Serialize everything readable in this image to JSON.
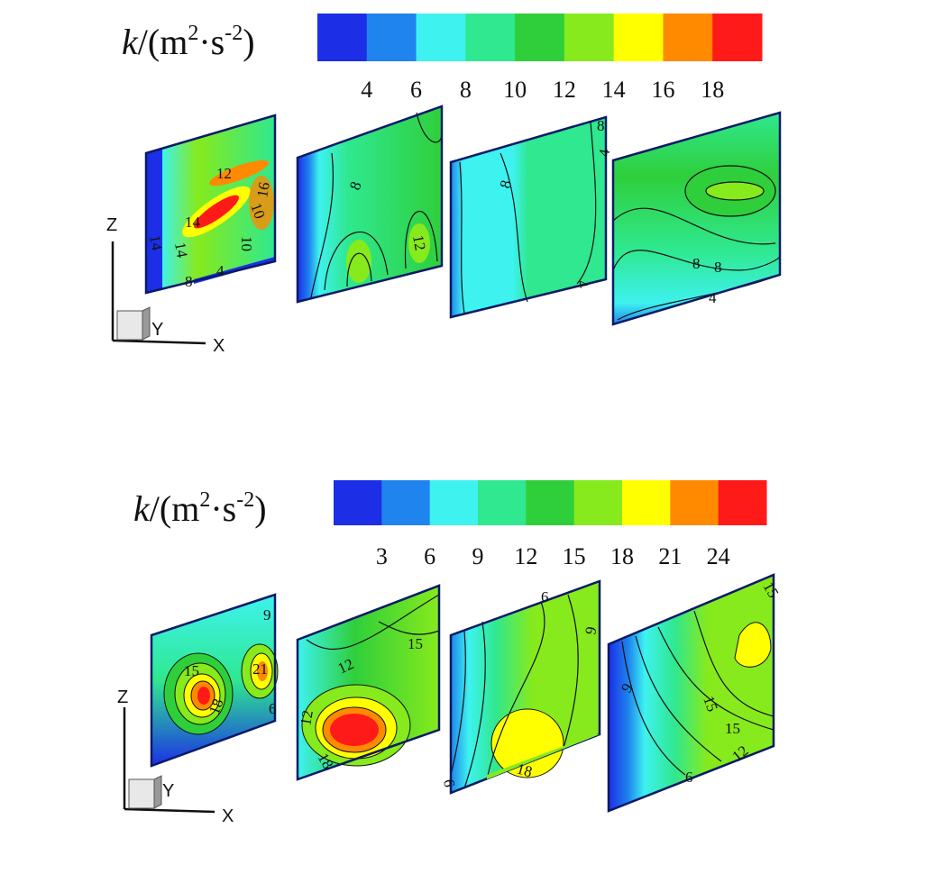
{
  "chart_data": [
    {
      "type": "heatmap",
      "title": "k/(m2·s-2)",
      "title_parts": {
        "var": "k",
        "unit_open": "/(m",
        "sup1": "2",
        "dot_s": "·s",
        "sup2": "-2",
        "close": ")"
      },
      "colorbar": {
        "tick_labels": [
          "4",
          "6",
          "8",
          "10",
          "12",
          "14",
          "16",
          "18"
        ],
        "colors": [
          "#1c2fe6",
          "#1f84ee",
          "#3ef2ef",
          "#2fe88f",
          "#2fcf3b",
          "#86ea1c",
          "#ffff00",
          "#ff8a00",
          "#ff1a1a"
        ]
      },
      "contour_labels": {
        "panel1": [
          "12",
          "14",
          "14",
          "14",
          "10",
          "16",
          "10",
          "8",
          "4"
        ],
        "panel2": [
          "8",
          "12"
        ],
        "panel3": [
          "8",
          "4",
          "4",
          "8"
        ],
        "panel4": [
          "8",
          "8",
          "4"
        ]
      },
      "axes": {
        "z": "Z",
        "y": "Y",
        "x": "X"
      }
    },
    {
      "type": "heatmap",
      "title": "k/(m2·s-2)",
      "title_parts": {
        "var": "k",
        "unit_open": "/(m",
        "sup1": "2",
        "dot_s": "·s",
        "sup2": "-2",
        "close": ")"
      },
      "colorbar": {
        "tick_labels": [
          "3",
          "6",
          "9",
          "12",
          "15",
          "18",
          "21",
          "24"
        ],
        "colors": [
          "#1c2fe6",
          "#1f84ee",
          "#3ef2ef",
          "#2fe88f",
          "#2fcf3b",
          "#86ea1c",
          "#ffff00",
          "#ff8a00",
          "#ff1a1a"
        ]
      },
      "contour_labels": {
        "panel1": [
          "15",
          "18",
          "21",
          "9",
          "6"
        ],
        "panel2": [
          "12",
          "15",
          "12",
          "18"
        ],
        "panel3": [
          "6",
          "9",
          "18",
          "6"
        ],
        "panel4": [
          "9",
          "15",
          "15",
          "12",
          "6",
          "15"
        ]
      },
      "axes": {
        "z": "Z",
        "y": "Y",
        "x": "X"
      }
    }
  ]
}
